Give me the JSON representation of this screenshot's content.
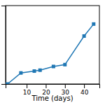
{
  "chart_data": {
    "type": "line",
    "x": [
      0,
      7,
      14,
      17,
      24,
      30,
      40,
      45
    ],
    "values": [
      0.0,
      0.12,
      0.14,
      0.15,
      0.19,
      0.21,
      0.52,
      0.65
    ],
    "marker": "square",
    "xlabel": "Time (days)",
    "xlim": [
      -1,
      48
    ],
    "ylim": [
      0,
      0.85
    ],
    "xticks": [
      10,
      20,
      30,
      40
    ],
    "yticks": [],
    "tick_labels": "x"
  }
}
